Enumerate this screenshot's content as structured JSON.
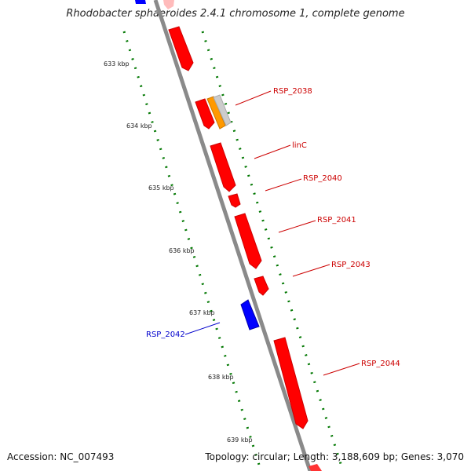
{
  "title": "Rhodobacter sphaeroides 2.4.1 chromosome 1, complete genome",
  "footer": {
    "accession": "Accession: NC_007493",
    "summary": "Topology: circular; Length: 3,188,609 bp; Genes: 3,070"
  },
  "ticks": [
    "633 kbp",
    "634 kbp",
    "635 kbp",
    "636 kbp",
    "637 kbp",
    "638 kbp",
    "639 kbp"
  ],
  "gene_labels": [
    {
      "name": "RSP_2038",
      "color": "#cc0000"
    },
    {
      "name": "linC",
      "color": "#cc0000"
    },
    {
      "name": "RSP_2040",
      "color": "#cc0000"
    },
    {
      "name": "RSP_2041",
      "color": "#cc0000"
    },
    {
      "name": "RSP_2043",
      "color": "#cc0000"
    },
    {
      "name": "RSP_2042",
      "color": "#0000cc"
    },
    {
      "name": "RSP_2044",
      "color": "#cc0000"
    }
  ],
  "colors": {
    "forward_gene": "#ff0000",
    "reverse_gene": "#0000ff",
    "orange_feature": "#ff9900",
    "grey_feature": "#bbbbbb",
    "backbone": "#888888",
    "tick_green": "#006600"
  }
}
